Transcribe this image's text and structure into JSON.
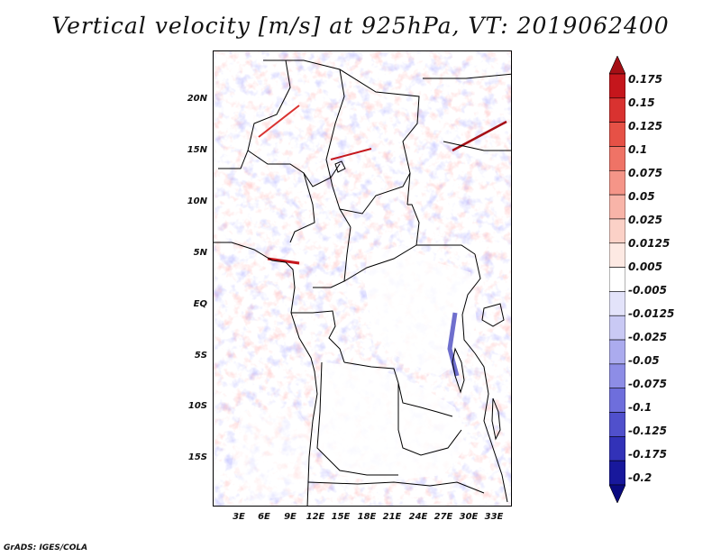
{
  "title": "Vertical velocity [m/s] at 925hPa, VT: 2019062400",
  "credit": "GrADS: IGES/COLA",
  "map": {
    "lon_range": [
      0,
      35
    ],
    "lat_range": [
      -20,
      24
    ],
    "lat_ticks": [
      {
        "value": 20,
        "label": "20N"
      },
      {
        "value": 15,
        "label": "15N"
      },
      {
        "value": 10,
        "label": "10N"
      },
      {
        "value": 5,
        "label": "5N"
      },
      {
        "value": 0,
        "label": "EQ"
      },
      {
        "value": -5,
        "label": "5S"
      },
      {
        "value": -10,
        "label": "10S"
      },
      {
        "value": -15,
        "label": "15S"
      }
    ],
    "lon_ticks": [
      {
        "value": 3,
        "label": "3E"
      },
      {
        "value": 6,
        "label": "6E"
      },
      {
        "value": 9,
        "label": "9E"
      },
      {
        "value": 12,
        "label": "12E"
      },
      {
        "value": 15,
        "label": "15E"
      },
      {
        "value": 18,
        "label": "18E"
      },
      {
        "value": 21,
        "label": "21E"
      },
      {
        "value": 24,
        "label": "24E"
      },
      {
        "value": 27,
        "label": "27E"
      },
      {
        "value": 30,
        "label": "30E"
      },
      {
        "value": 33,
        "label": "33E"
      }
    ]
  },
  "colorbar": {
    "labels": [
      "0.175",
      "0.15",
      "0.125",
      "0.1",
      "0.075",
      "0.05",
      "0.025",
      "0.0125",
      "0.005",
      "-0.005",
      "-0.0125",
      "-0.025",
      "-0.05",
      "-0.075",
      "-0.1",
      "-0.125",
      "-0.175",
      "-0.2"
    ],
    "colors": [
      "#a50f15",
      "#c5161c",
      "#d93230",
      "#e65146",
      "#ef7366",
      "#f59588",
      "#f8b4a8",
      "#fbd1c7",
      "#fde9e3",
      "#ffffff",
      "#e3e3fa",
      "#c9c9f4",
      "#ababee",
      "#8d8de6",
      "#6e6edc",
      "#5050cc",
      "#3232b8",
      "#18189c",
      "#0a0a80"
    ]
  }
}
